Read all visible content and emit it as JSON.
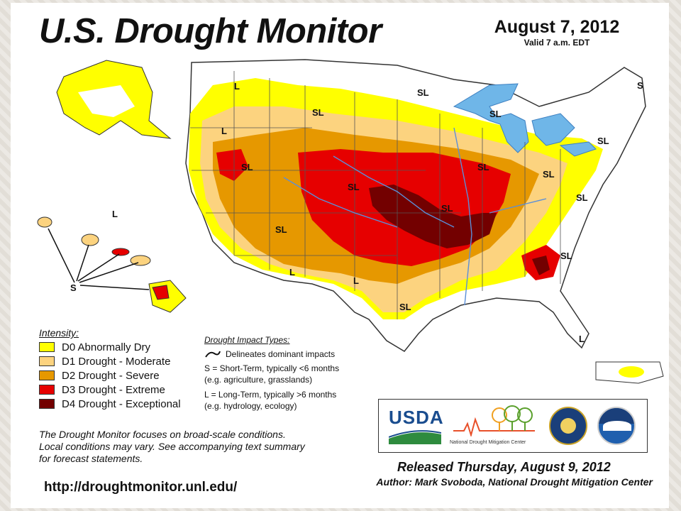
{
  "header": {
    "title": "U.S. Drought Monitor",
    "date": "August 7, 2012",
    "valid": "Valid 7 a.m. EDT"
  },
  "legend": {
    "title": "Intensity:",
    "items": [
      {
        "label": "D0 Abnormally Dry",
        "color": "#ffff00"
      },
      {
        "label": "D1 Drought - Moderate",
        "color": "#fcd37f"
      },
      {
        "label": "D2 Drought - Severe",
        "color": "#e69800"
      },
      {
        "label": "D3 Drought - Extreme",
        "color": "#e60000"
      },
      {
        "label": "D4 Drought - Exceptional",
        "color": "#730000"
      }
    ]
  },
  "impacts": {
    "title": "Drought Impact Types:",
    "delineates": "Delineates dominant impacts",
    "short_term": "S = Short-Term, typically <6 months",
    "short_term_eg": "(e.g. agriculture, grasslands)",
    "long_term": "L = Long-Term, typically >6 months",
    "long_term_eg": "(e.g. hydrology, ecology)"
  },
  "note": {
    "line1": "The Drought Monitor focuses on broad-scale conditions.",
    "line2": "Local conditions may vary. See accompanying text summary",
    "line3": "for forecast statements."
  },
  "url": "http://droughtmonitor.unl.edu/",
  "logos": {
    "usda": "USDA",
    "ndmc": "National Drought Mitigation Center"
  },
  "footer": {
    "released": "Released Thursday, August 9, 2012",
    "author": "Author: Mark Svoboda, National Drought Mitigation Center"
  },
  "map_labels": {
    "sl": "SL",
    "s": "S",
    "l": "L"
  },
  "colors": {
    "water": "#6fb6e8",
    "river": "#5b8fd8",
    "background": "#ffffff"
  }
}
